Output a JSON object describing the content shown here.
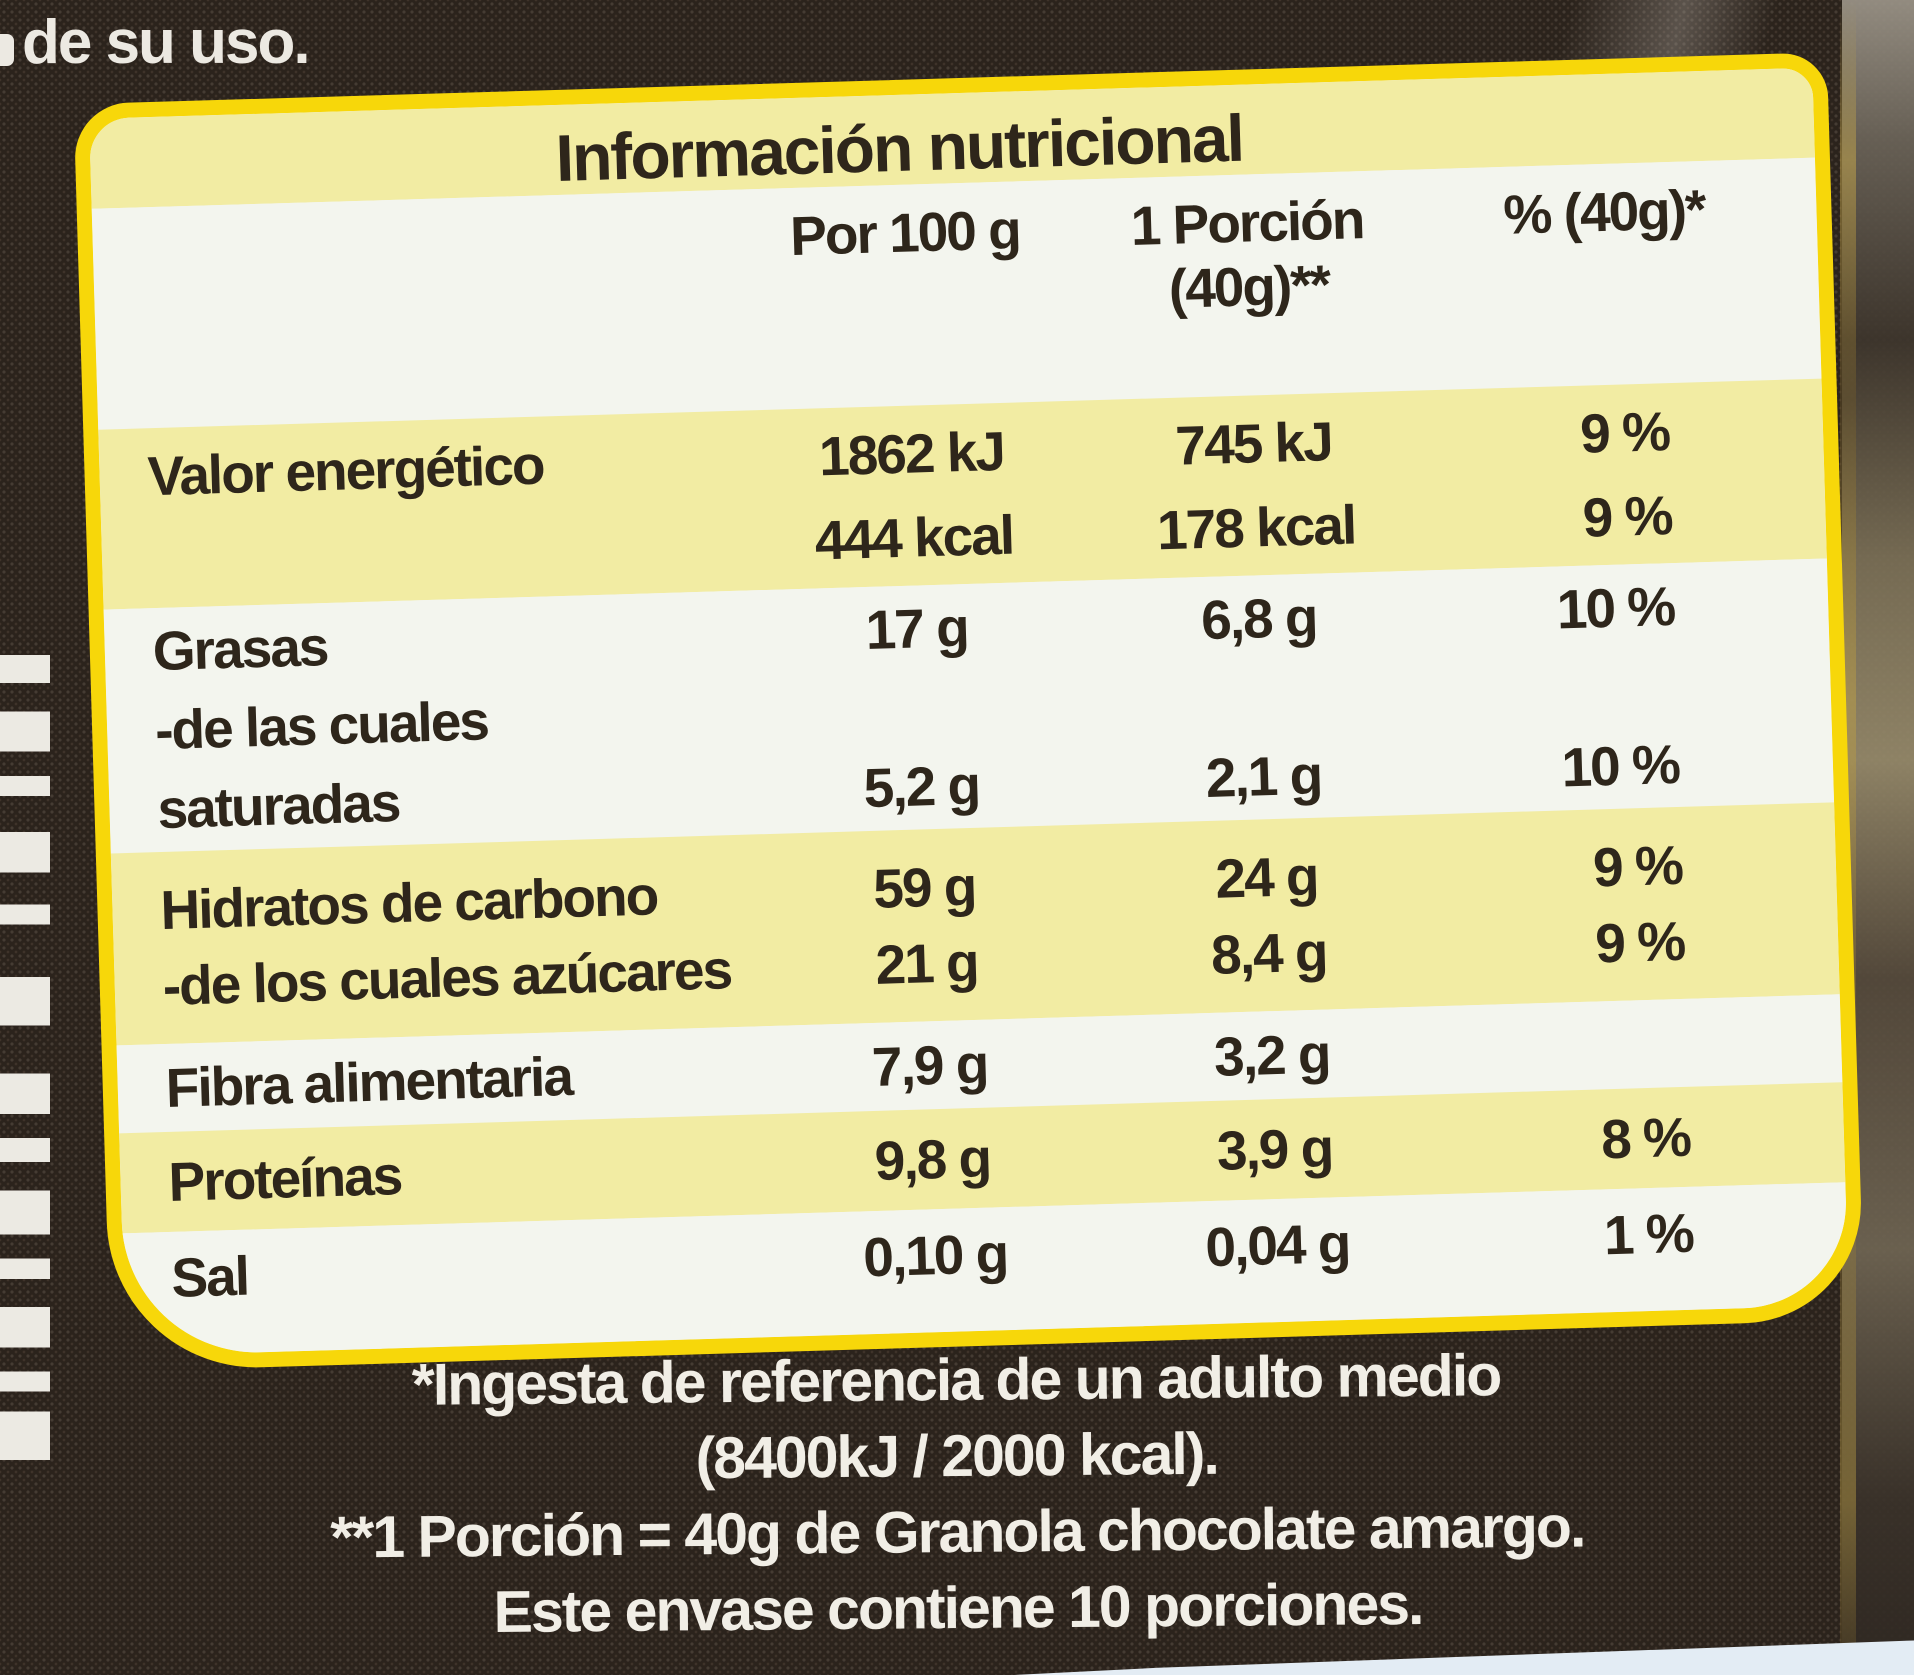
{
  "photo": {
    "top_left_text": "de su uso.",
    "colors": {
      "background": "#2b231c",
      "label_border_yellow": "#f7d70a",
      "band_yellow": "#f2eca3",
      "band_white": "#f3f5ee",
      "text_dark": "#2e261b",
      "text_light": "#f1eee6",
      "package_bottom_edge": "#e3ecf4"
    },
    "icons": {
      "barcode": "barcode-fragment"
    }
  },
  "label": {
    "title": "Información nutricional",
    "header": {
      "col_per100": "Por 100 g",
      "col_portion_line1": "1 Porción",
      "col_portion_line2": "(40g)**",
      "col_pct": "% (40g)*"
    },
    "rows": [
      {
        "band": "yellow",
        "lines": [
          {
            "label": "Valor energético",
            "per100": "1862 kJ",
            "portion": "745 kJ",
            "pct": "9 %"
          },
          {
            "label": "",
            "per100": "444 kcal",
            "portion": "178 kcal",
            "pct": "9 %"
          }
        ]
      },
      {
        "band": "white",
        "lines": [
          {
            "label": "Grasas",
            "per100": "17 g",
            "portion": "6,8 g",
            "pct": "10 %"
          },
          {
            "label": "-de las cuales",
            "per100": "",
            "portion": "",
            "pct": ""
          },
          {
            "label": "saturadas",
            "per100": "5,2 g",
            "portion": "2,1 g",
            "pct": "10 %"
          }
        ]
      },
      {
        "band": "yellow",
        "lines": [
          {
            "label": "Hidratos de carbono",
            "per100": "59 g",
            "portion": "24 g",
            "pct": "9 %"
          },
          {
            "label": "-de los cuales azúcares",
            "per100": "21 g",
            "portion": "8,4 g",
            "pct": "9 %"
          }
        ]
      },
      {
        "band": "white",
        "lines": [
          {
            "label": "Fibra alimentaria",
            "per100": "7,9 g",
            "portion": "3,2 g",
            "pct": ""
          }
        ]
      },
      {
        "band": "yellow",
        "lines": [
          {
            "label": "Proteínas",
            "per100": "9,8 g",
            "portion": "3,9 g",
            "pct": "8 %"
          }
        ]
      },
      {
        "band": "white",
        "lines": [
          {
            "label": "Sal",
            "per100": "0,10 g",
            "portion": "0,04 g",
            "pct": "1 %"
          }
        ]
      }
    ],
    "footnotes": [
      "*Ingesta de referencia de un adulto medio",
      "(8400kJ / 2000 kcal).",
      "**1 Porción = 40g de Granola chocolate amargo.",
      "Este envase contiene 10 porciones."
    ]
  }
}
